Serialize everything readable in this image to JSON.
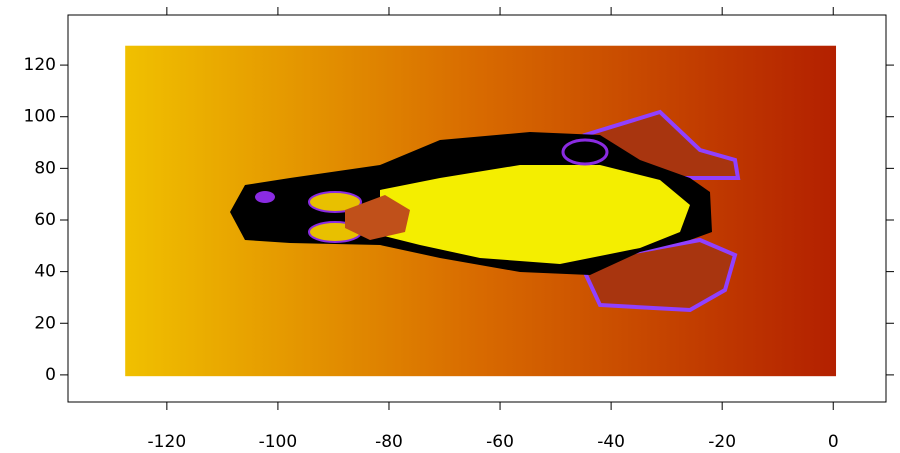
{
  "chart_data": {
    "type": "image",
    "image_extent": {
      "x": [
        -127.5,
        0.5
      ],
      "y": [
        -0.5,
        127.5
      ]
    },
    "xlim": [
      -137.8,
      9.5
    ],
    "ylim": [
      -10.5,
      139.4
    ],
    "xticks": [
      -120,
      -100,
      -80,
      -60,
      -40,
      -20,
      0
    ],
    "yticks": [
      0,
      20,
      40,
      60,
      80,
      100,
      120
    ]
  }
}
